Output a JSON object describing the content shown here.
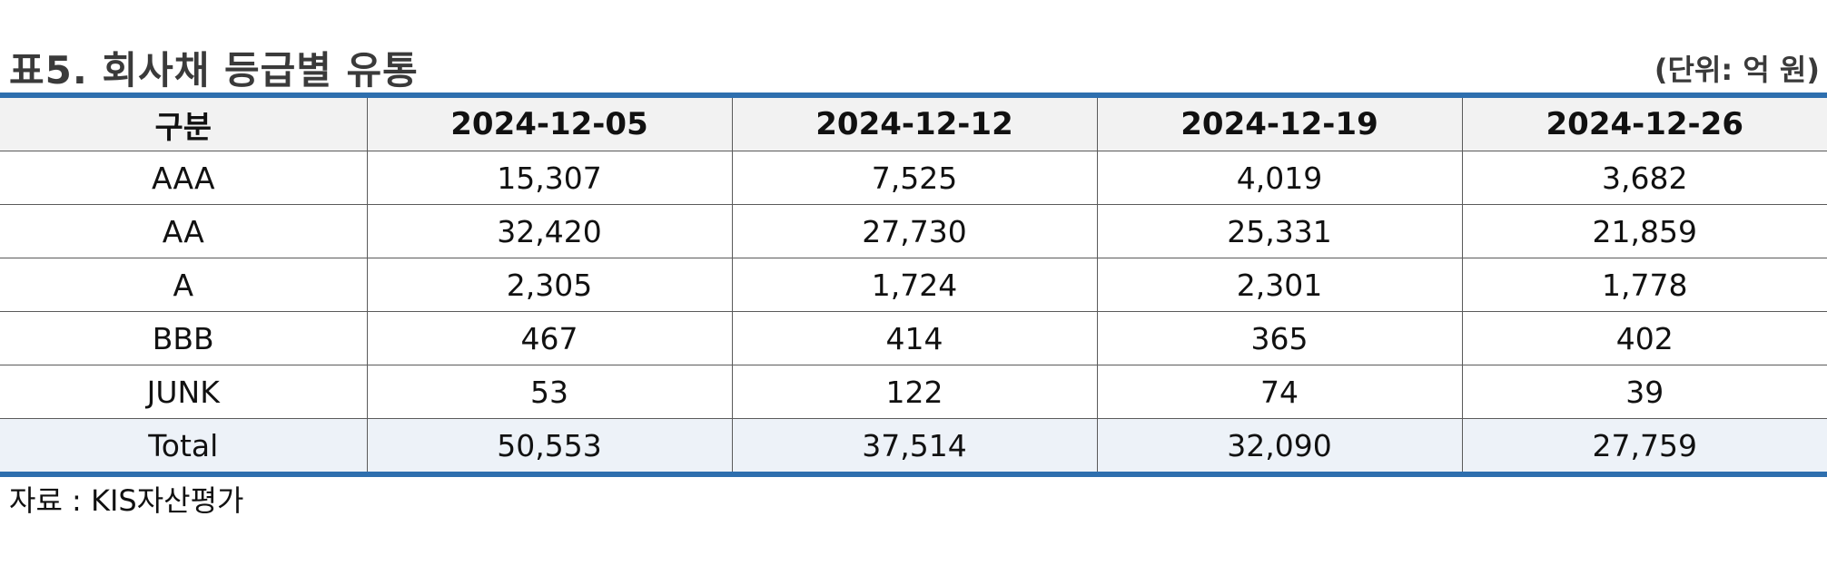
{
  "title": "표5. 회사채 등급별 유통",
  "unit": "(단위: 억 원)",
  "table": {
    "headers": [
      "구분",
      "2024-12-05",
      "2024-12-12",
      "2024-12-19",
      "2024-12-26"
    ],
    "rows": [
      [
        "AAA",
        "15,307",
        "7,525",
        "4,019",
        "3,682"
      ],
      [
        "AA",
        "32,420",
        "27,730",
        "25,331",
        "21,859"
      ],
      [
        "A",
        "2,305",
        "1,724",
        "2,301",
        "1,778"
      ],
      [
        "BBB",
        "467",
        "414",
        "365",
        "402"
      ],
      [
        "JUNK",
        "53",
        "122",
        "74",
        "39"
      ],
      [
        "Total",
        "50,553",
        "37,514",
        "32,090",
        "27,759"
      ]
    ]
  },
  "source": "자료 : KIS자산평가",
  "colors": {
    "rule": "#2e6fae",
    "header_bg": "#f2f2f2",
    "total_bg": "#edf2f8"
  }
}
